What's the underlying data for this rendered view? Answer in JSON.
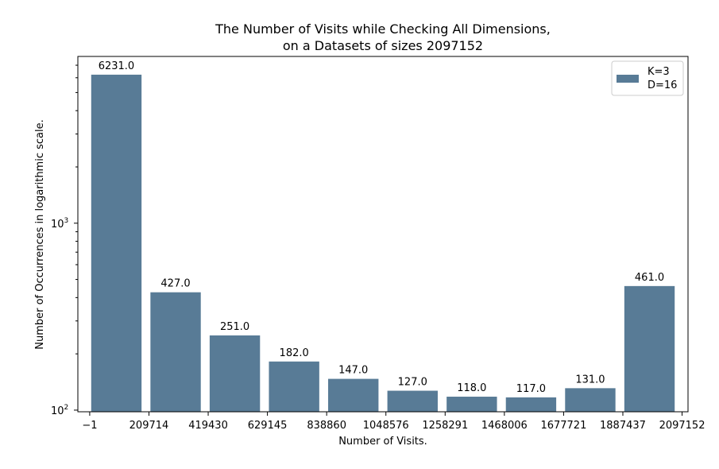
{
  "chart_data": {
    "type": "bar",
    "title": {
      "line1": "The Number of Visits while Checking All Dimensions,",
      "line2": "on a Datasets of sizes 2097152"
    },
    "xlabel": "Number of Visits.",
    "ylabel": "Number of Occurrences in logarithmic scale.",
    "y_scale": "log",
    "ylim": [
      98,
      7800
    ],
    "y_tick_labels": [
      {
        "value": 100,
        "base": "10",
        "exp": "2"
      },
      {
        "value": 1000,
        "base": "10",
        "exp": "3"
      }
    ],
    "x_tick_labels": [
      "−1",
      "209714",
      "419430",
      "629145",
      "838860",
      "1048576",
      "1258291",
      "1468006",
      "1677721",
      "1887437",
      "2097152"
    ],
    "bars": [
      {
        "value": 6231.0,
        "label": "6231.0"
      },
      {
        "value": 427.0,
        "label": "427.0"
      },
      {
        "value": 251.0,
        "label": "251.0"
      },
      {
        "value": 182.0,
        "label": "182.0"
      },
      {
        "value": 147.0,
        "label": "147.0"
      },
      {
        "value": 127.0,
        "label": "127.0"
      },
      {
        "value": 118.0,
        "label": "118.0"
      },
      {
        "value": 117.0,
        "label": "117.0"
      },
      {
        "value": 131.0,
        "label": "131.0"
      },
      {
        "value": 461.0,
        "label": "461.0"
      }
    ],
    "bar_color": "#587b96",
    "legend": {
      "placement": "top-right",
      "lines": [
        "K=3",
        "D=16"
      ]
    },
    "grid": false
  }
}
